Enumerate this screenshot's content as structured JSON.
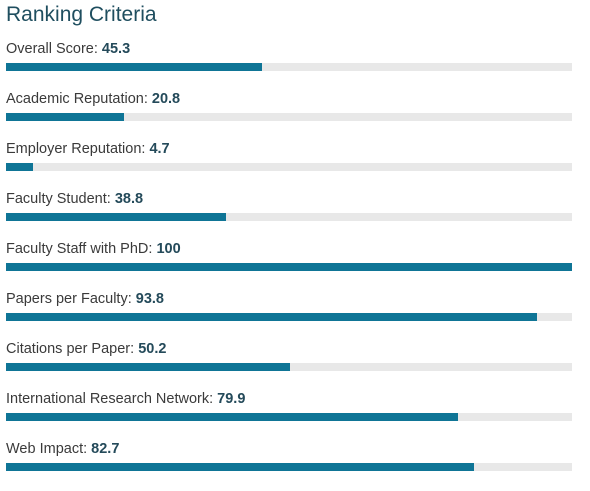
{
  "title": "Ranking Criteria",
  "criteria": [
    {
      "label": "Overall Score:",
      "value": "45.3",
      "score": 45.3
    },
    {
      "label": "Academic Reputation:",
      "value": "20.8",
      "score": 20.8
    },
    {
      "label": "Employer Reputation:",
      "value": "4.7",
      "score": 4.7
    },
    {
      "label": "Faculty Student:",
      "value": "38.8",
      "score": 38.8
    },
    {
      "label": "Faculty Staff with PhD:",
      "value": "100",
      "score": 100
    },
    {
      "label": "Papers per Faculty:",
      "value": "93.8",
      "score": 93.8
    },
    {
      "label": "Citations per Paper:",
      "value": "50.2",
      "score": 50.2
    },
    {
      "label": "International Research Network:",
      "value": "79.9",
      "score": 79.9
    },
    {
      "label": "Web Impact:",
      "value": "82.7",
      "score": 82.7
    }
  ],
  "scale_max": 100,
  "colors": {
    "bar_fill": "#0f7596",
    "bar_track": "#e8e8e8",
    "title": "#1f4e5f"
  }
}
